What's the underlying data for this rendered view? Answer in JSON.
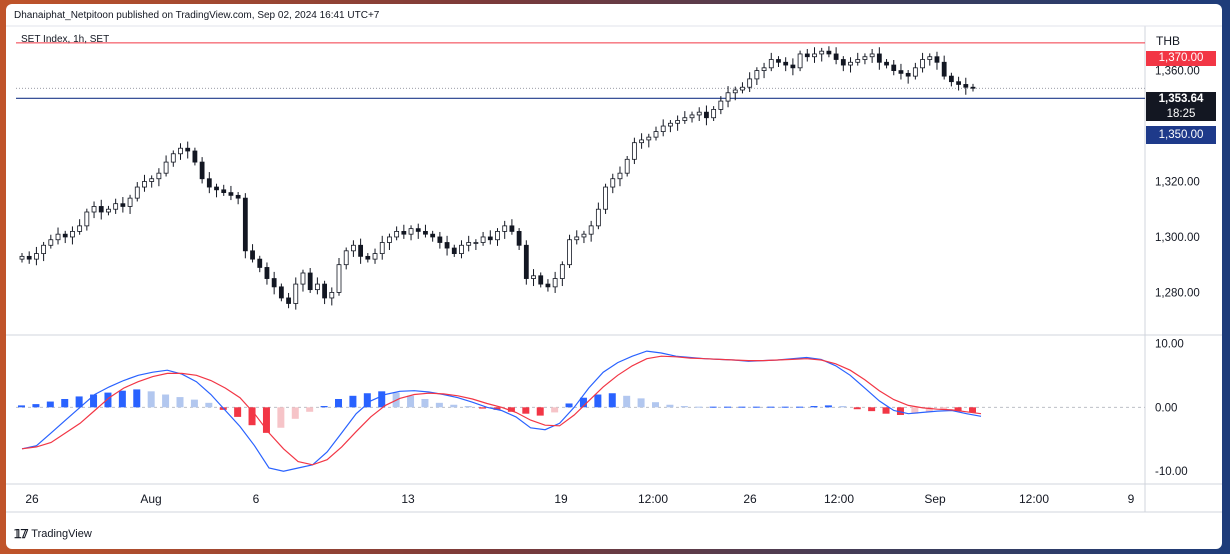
{
  "header": {
    "publisher": "Dhanaiphat_Netpitoon published on TradingView.com, Sep 02, 2024 16:41 UTC+7",
    "symbol": "SET Index, 1h, SET",
    "currency": "THB"
  },
  "footer": {
    "brand": "TradingView"
  },
  "price_tags": {
    "resistance": "1,370.00",
    "last": "1,353.64",
    "countdown": "18:25",
    "support": "1,350.00"
  },
  "colors": {
    "up": "#131722",
    "down": "#131722",
    "resistance_line": "#f23645",
    "support_line": "#1e3a8a",
    "macd": "#2962ff",
    "signal": "#f23645",
    "hist_pos_strong": "#2962ff",
    "hist_pos_weak": "#b2c7ef",
    "hist_neg_strong": "#f23645",
    "hist_neg_weak": "#f6c4c8"
  },
  "chart_data": [
    {
      "type": "candlestick",
      "title": "SET Index, 1h, SET",
      "ylim": [
        1265,
        1375
      ],
      "yticks": [
        "1,360.00",
        "1,320.00",
        "1,300.00",
        "1,280.00"
      ],
      "ytick_values": [
        1360,
        1320,
        1300,
        1280
      ],
      "xticks": [
        "26",
        "Aug",
        "6",
        "13",
        "19",
        "12:00",
        "26",
        "12:00",
        "Sep",
        "12:00",
        "9"
      ],
      "horizontal_lines": [
        1370,
        1350
      ],
      "close_series": [
        1293,
        1292,
        1294,
        1297,
        1299,
        1301,
        1300,
        1302,
        1304,
        1309,
        1311,
        1309,
        1310,
        1312,
        1311,
        1314,
        1318,
        1320,
        1321,
        1323,
        1327,
        1330,
        1332,
        1331,
        1327,
        1321,
        1318,
        1317,
        1316,
        1315,
        1314,
        1295,
        1292,
        1289,
        1285,
        1282,
        1278,
        1276,
        1283,
        1287,
        1281,
        1283,
        1278,
        1280,
        1290,
        1295,
        1297,
        1293,
        1292,
        1294,
        1298,
        1300,
        1302,
        1301,
        1303,
        1302,
        1301,
        1300,
        1298,
        1296,
        1294,
        1297,
        1298,
        1298,
        1300,
        1299,
        1302,
        1304,
        1302,
        1297,
        1285,
        1286,
        1283,
        1282,
        1285,
        1290,
        1299,
        1300,
        1301,
        1304,
        1310,
        1318,
        1321,
        1323,
        1328,
        1334,
        1335,
        1336,
        1338,
        1340,
        1341,
        1342,
        1343,
        1344,
        1345,
        1343,
        1346,
        1349,
        1352,
        1353,
        1354,
        1357,
        1360,
        1361,
        1364,
        1363,
        1362,
        1361,
        1366,
        1365,
        1366,
        1367,
        1366,
        1364,
        1362,
        1363,
        1364,
        1365,
        1366,
        1363,
        1362,
        1360,
        1359,
        1358,
        1361,
        1364,
        1365,
        1363,
        1358,
        1356,
        1355,
        1354,
        1353.64
      ]
    },
    {
      "type": "line",
      "title": "",
      "ylim": [
        -12,
        11
      ],
      "yticks": [
        "10.00",
        "0.00",
        "-10.00"
      ],
      "ytick_values": [
        10,
        0,
        -10
      ],
      "series": [
        {
          "name": "",
          "values": [
            -6.5,
            -6,
            -4,
            -2,
            0,
            2,
            3.2,
            4.2,
            5,
            5.5,
            5.8,
            5.2,
            4,
            2,
            -0.5,
            -3,
            -6,
            -9.5,
            -10,
            -9.5,
            -9,
            -7,
            -4,
            -1,
            1,
            2,
            2.5,
            2.6,
            2.4,
            2,
            1.5,
            0.8,
            0,
            -0.5,
            -1.5,
            -3.2,
            -3.5,
            -2.5,
            0,
            3,
            5.5,
            7,
            8,
            8.8,
            8.5,
            8,
            7.8,
            7.6,
            7.5,
            7.4,
            7.2,
            7.3,
            7.4,
            7.6,
            7.8,
            7.5,
            6.5,
            5,
            3,
            1,
            -0.5,
            -1,
            -0.8,
            -0.6,
            -0.5,
            -1,
            -1.4
          ]
        },
        {
          "name": "",
          "values": [
            -6.5,
            -6.2,
            -5.5,
            -4,
            -2.5,
            -0.5,
            1.5,
            3,
            4,
            4.8,
            5.3,
            5.3,
            5,
            4.2,
            3,
            1.5,
            -1,
            -4,
            -6.5,
            -8.5,
            -9,
            -8.2,
            -6.2,
            -3.8,
            -1.5,
            0.3,
            1.4,
            2,
            2.2,
            2.1,
            1.8,
            1.3,
            0.6,
            0,
            -0.8,
            -2,
            -2.8,
            -2.9,
            -1.2,
            1,
            3.2,
            5,
            6.5,
            7.6,
            8,
            7.9,
            7.7,
            7.6,
            7.5,
            7.4,
            7.3,
            7.3,
            7.4,
            7.5,
            7.6,
            7.4,
            6.8,
            5.8,
            4.3,
            2.6,
            1.2,
            0.3,
            -0.1,
            -0.3,
            -0.4,
            -0.7,
            -1
          ]
        }
      ],
      "histogram": [
        0.3,
        0.5,
        0.9,
        1.3,
        1.7,
        2,
        2.3,
        2.6,
        2.8,
        2.5,
        2,
        1.6,
        1.2,
        0.7,
        -0.4,
        -1.5,
        -2.8,
        -4,
        -3.2,
        -1.8,
        -0.7,
        0.2,
        1.3,
        1.8,
        2.2,
        2.5,
        2.3,
        1.8,
        1.3,
        0.7,
        0.4,
        0.2,
        -0.2,
        -0.4,
        -0.7,
        -1,
        -1.3,
        -0.8,
        0.6,
        1.5,
        2,
        2.2,
        1.8,
        1.4,
        0.8,
        0.4,
        0.2,
        0.1,
        0.1,
        0.1,
        0.1,
        0.1,
        0.1,
        0.1,
        0.1,
        0.2,
        0.3,
        0.2,
        -0.3,
        -0.6,
        -1,
        -1.2,
        -1,
        -0.7,
        -0.4,
        -0.6,
        -0.8
      ],
      "xticks": [
        "26",
        "Aug",
        "6",
        "13",
        "19",
        "12:00",
        "26",
        "12:00",
        "Sep",
        "12:00",
        "9"
      ]
    }
  ]
}
